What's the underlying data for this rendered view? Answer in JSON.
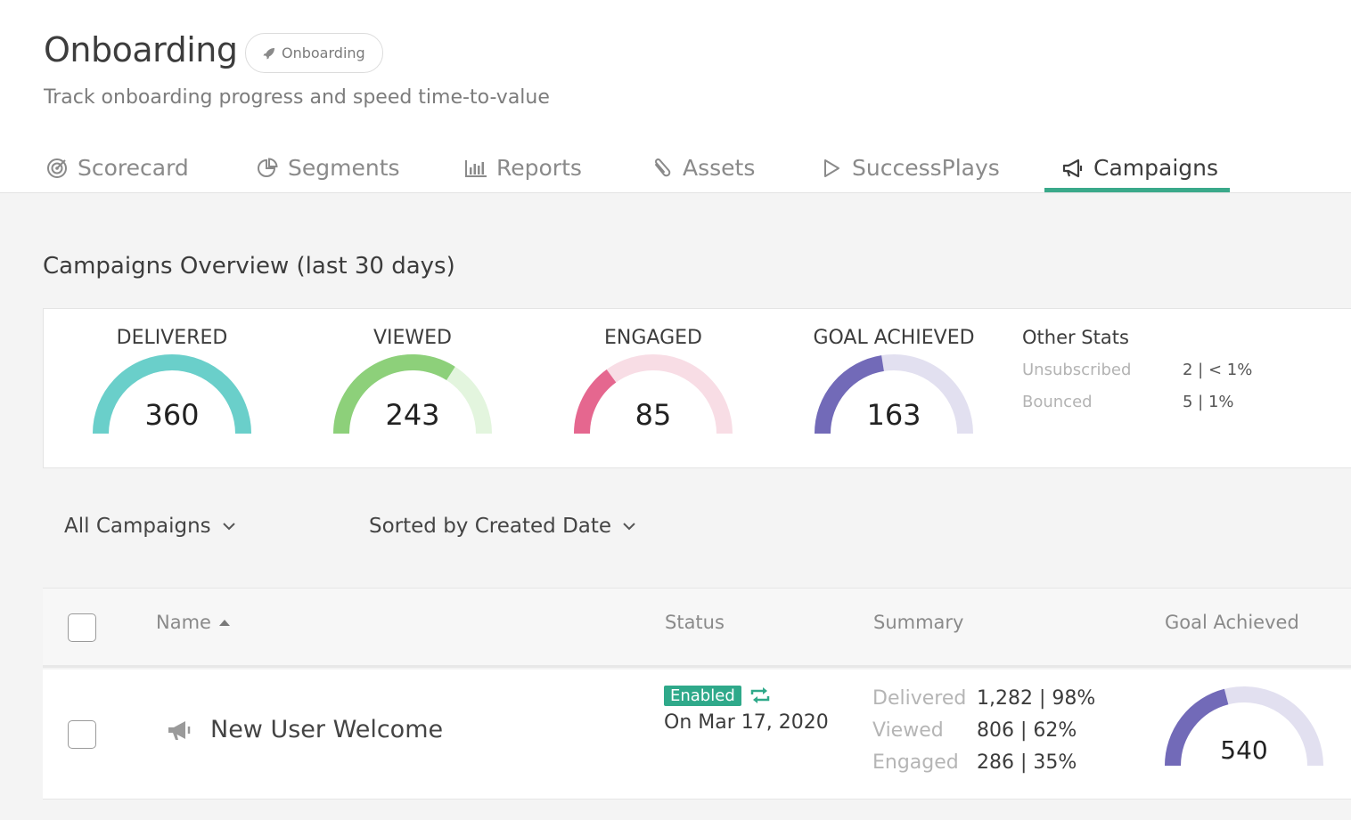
{
  "header": {
    "title": "Onboarding",
    "pill_label": "Onboarding",
    "subtitle": "Track onboarding progress and speed time-to-value"
  },
  "tabs": [
    {
      "label": "Scorecard",
      "icon": "target-icon"
    },
    {
      "label": "Segments",
      "icon": "pie-chart-icon"
    },
    {
      "label": "Reports",
      "icon": "bar-chart-icon"
    },
    {
      "label": "Assets",
      "icon": "paperclip-icon"
    },
    {
      "label": "SuccessPlays",
      "icon": "play-icon"
    },
    {
      "label": "Campaigns",
      "icon": "megaphone-icon",
      "active": true
    }
  ],
  "overview": {
    "title": "Campaigns Overview (last 30 days)",
    "gauges": [
      {
        "label": "DELIVERED",
        "value": "360",
        "fill": 1.0,
        "color": "#6acfca",
        "track": "#d7f3f1"
      },
      {
        "label": "VIEWED",
        "value": "243",
        "fill": 0.68,
        "color": "#8dd07a",
        "track": "#e3f5de"
      },
      {
        "label": "ENGAGED",
        "value": "85",
        "fill": 0.3,
        "color": "#e5678f",
        "track": "#f8dde5"
      },
      {
        "label": "GOAL ACHIEVED",
        "value": "163",
        "fill": 0.45,
        "color": "#726ab8",
        "track": "#e2e0f0"
      }
    ],
    "other_stats": {
      "title": "Other Stats",
      "rows": [
        {
          "label": "Unsubscribed",
          "value": "2 | < 1%"
        },
        {
          "label": "Bounced",
          "value": "5 | 1%"
        }
      ]
    }
  },
  "filters": {
    "campaign_filter": "All Campaigns",
    "sort_filter": "Sorted by Created Date"
  },
  "table": {
    "columns": {
      "name": "Name",
      "status": "Status",
      "summary": "Summary",
      "goal": "Goal Achieved"
    },
    "rows": [
      {
        "name": "New User Welcome",
        "status_badge": "Enabled",
        "status_date": "On Mar 17, 2020",
        "summary": [
          {
            "label": "Delivered",
            "value": "1,282 | 98%"
          },
          {
            "label": "Viewed",
            "value": "806 | 62%"
          },
          {
            "label": "Engaged",
            "value": "286 | 35%"
          }
        ],
        "goal_value": "540",
        "goal_fill": 0.42
      }
    ]
  },
  "colors": {
    "accent": "#3aa98a",
    "enabled_badge": "#2fa98a",
    "goal_gauge": "#726ab8",
    "goal_track": "#e2e0f0"
  }
}
